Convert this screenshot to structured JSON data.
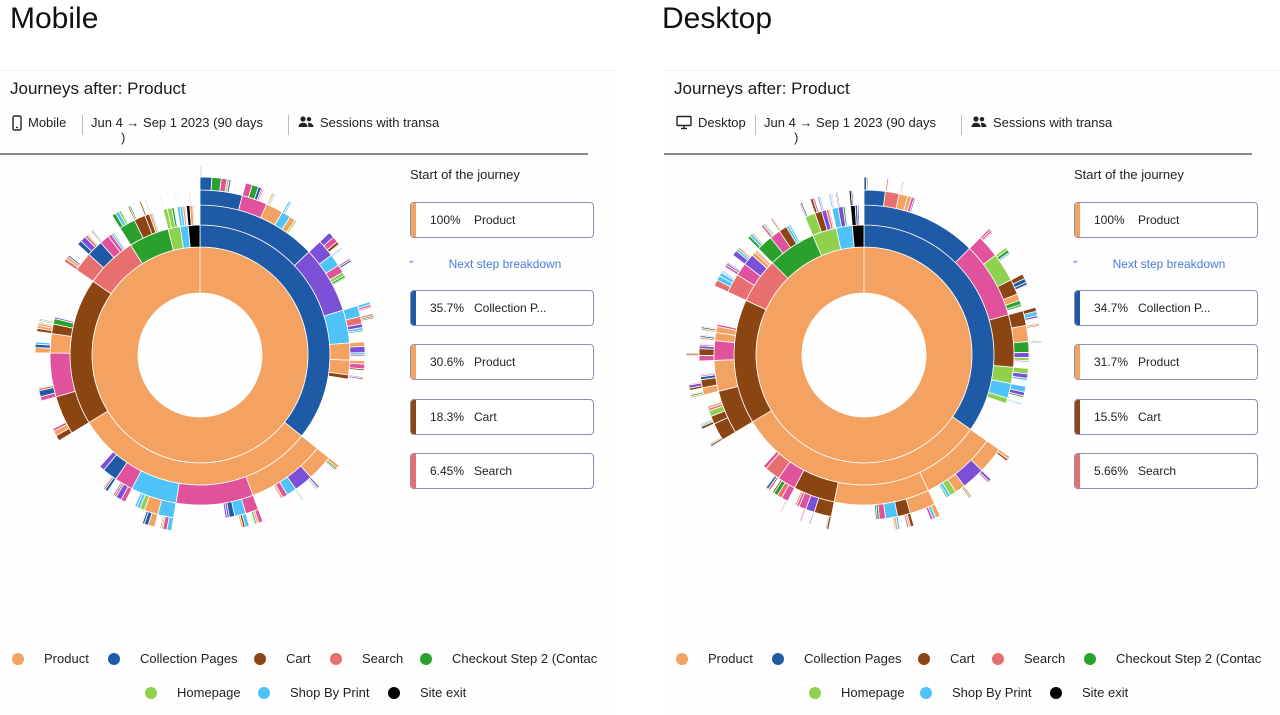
{
  "labels": {
    "left": "Mobile",
    "right": "Desktop"
  },
  "panels": [
    {
      "title": "Journeys after: Product",
      "device": {
        "icon": "smartphone-icon",
        "label": "Mobile"
      },
      "date": {
        "text": "Jun 4 → Sep 1 2023 (90 days",
        "tail": ")"
      },
      "segment": {
        "icon": "users-icon",
        "label": "Sessions  with transa"
      },
      "side": {
        "start_title": "Start of the journey",
        "start_card": {
          "pct": "100%",
          "name": "Product",
          "color": "#f4a261"
        },
        "next_step": "Next step breakdown",
        "cards": [
          {
            "pct": "35.7%",
            "name": "Collection P...",
            "color": "#1f5aa6"
          },
          {
            "pct": "30.6%",
            "name": "Product",
            "color": "#f4a261"
          },
          {
            "pct": "18.3%",
            "name": "Cart",
            "color": "#8b4513"
          },
          {
            "pct": "6.45%",
            "name": "Search",
            "color": "#e76f6f"
          }
        ]
      }
    },
    {
      "title": "Journeys after: Product",
      "device": {
        "icon": "monitor-icon",
        "label": "Desktop"
      },
      "date": {
        "text": "Jun 4 → Sep 1 2023 (90 days",
        "tail": ")"
      },
      "segment": {
        "icon": "users-icon",
        "label": "Sessions  with transa"
      },
      "side": {
        "start_title": "Start of the journey",
        "start_card": {
          "pct": "100%",
          "name": "Product",
          "color": "#f4a261"
        },
        "next_step": "Next step breakdown",
        "cards": [
          {
            "pct": "34.7%",
            "name": "Collection P...",
            "color": "#1f5aa6"
          },
          {
            "pct": "31.7%",
            "name": "Product",
            "color": "#f4a261"
          },
          {
            "pct": "15.5%",
            "name": "Cart",
            "color": "#8b4513"
          },
          {
            "pct": "5.66%",
            "name": "Search",
            "color": "#e76f6f"
          }
        ]
      }
    }
  ],
  "legend": [
    {
      "label": "Product",
      "color": "#f4a261"
    },
    {
      "label": "Collection Pages",
      "color": "#1f5aa6"
    },
    {
      "label": "Cart",
      "color": "#8b4513"
    },
    {
      "label": "Search",
      "color": "#e76f6f"
    },
    {
      "label": "Checkout Step 2 (Contac",
      "color": "#2ca02c"
    },
    {
      "label": "Homepage",
      "color": "#8fd14f"
    },
    {
      "label": "Shop By Print",
      "color": "#4fc3f7"
    },
    {
      "label": "Site exit",
      "color": "#000000"
    }
  ],
  "sunburst_palette": [
    "#f4a261",
    "#1f5aa6",
    "#8b4513",
    "#e76f6f",
    "#2ca02c",
    "#8fd14f",
    "#4fc3f7",
    "#7b4fd6",
    "#e0529c",
    "#000000"
  ]
}
